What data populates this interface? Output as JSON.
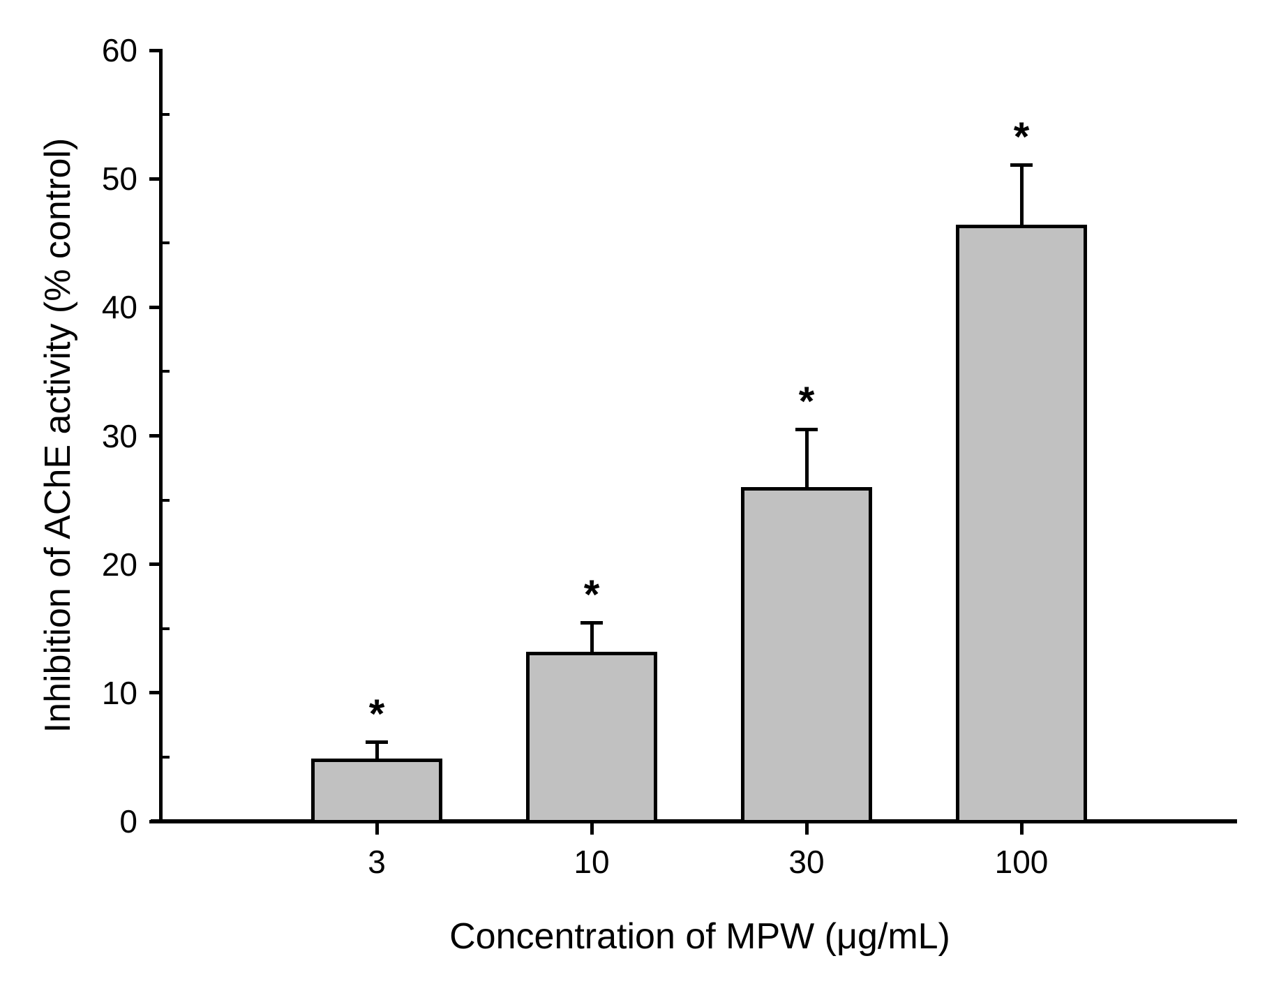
{
  "figure": {
    "background": "#ffffff",
    "bar_fill": "#c1c1c1",
    "line_color": "#000000"
  },
  "chart_data": {
    "type": "bar",
    "title": "",
    "xlabel": "Concentration of MPW (μg/mL)",
    "ylabel": "Inhibition of AChE activity (% control)",
    "categories": [
      "3",
      "10",
      "30",
      "100"
    ],
    "values": [
      4.9,
      13.2,
      26.0,
      46.4
    ],
    "error_upper": [
      1.3,
      2.3,
      4.5,
      4.7
    ],
    "significance": [
      "*",
      "*",
      "*",
      "*"
    ],
    "ylim": [
      0,
      60
    ],
    "y_major_ticks": [
      0,
      10,
      20,
      30,
      40,
      50,
      60
    ],
    "y_minor_ticks": [
      5,
      15,
      25,
      35,
      45,
      55
    ],
    "grid": false,
    "legend": null,
    "error_bars": "upper only, cap style"
  }
}
